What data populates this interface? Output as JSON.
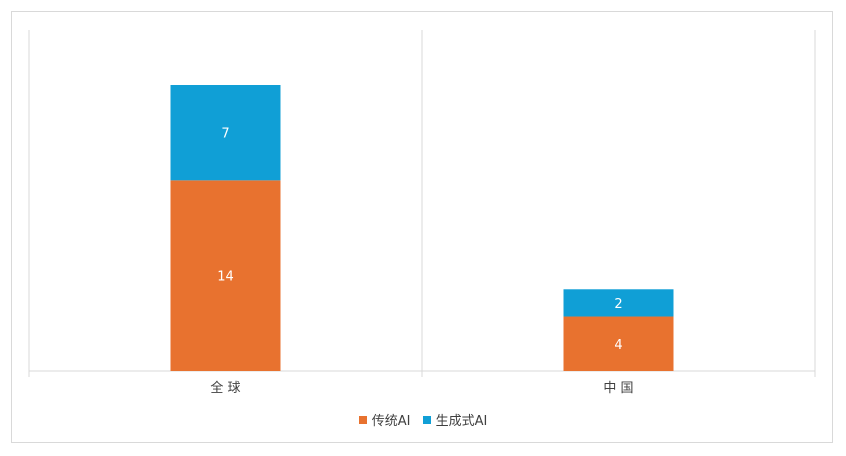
{
  "chart_data": {
    "type": "bar",
    "stacked": true,
    "categories": [
      "全 球",
      "中 国"
    ],
    "series": [
      {
        "name": "传统AI",
        "values": [
          14,
          4
        ],
        "color": "#E8722F"
      },
      {
        "name": "生成式AI",
        "values": [
          7,
          2
        ],
        "color": "#109FD6"
      }
    ],
    "ylim": [
      0,
      25
    ],
    "legend": "bottom",
    "grid": false
  }
}
